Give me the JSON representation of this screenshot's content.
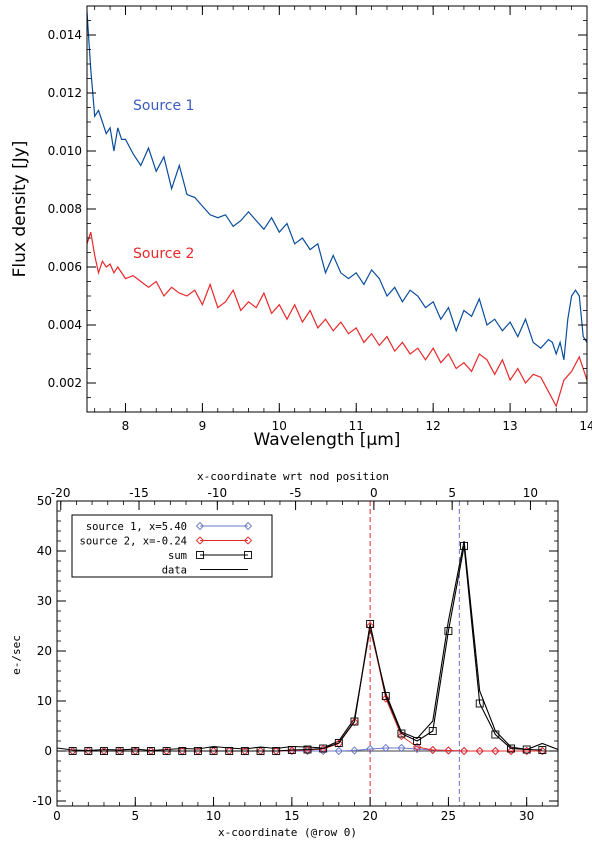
{
  "chart_data": [
    {
      "type": "line",
      "xlabel": "Wavelength [μm]",
      "ylabel": "Flux density [Jy]",
      "xlim": [
        7.5,
        14.0
      ],
      "ylim": [
        0.001,
        0.015
      ],
      "xticks": [
        8,
        9,
        10,
        11,
        12,
        13,
        14
      ],
      "xtick_labels": [
        "8",
        "9",
        "10",
        "11",
        "12",
        "13",
        "14"
      ],
      "yticks": [
        0.002,
        0.004,
        0.006,
        0.008,
        0.01,
        0.012,
        0.014
      ],
      "ytick_labels": [
        "0.002",
        "0.004",
        "0.006",
        "0.008",
        "0.010",
        "0.012",
        "0.014"
      ],
      "annotations": [
        {
          "text": "Source 1",
          "color": "#3b5bbf"
        },
        {
          "text": "Source 2",
          "color": "#e8282a"
        }
      ],
      "series": [
        {
          "color": "#0a4d9c",
          "x": [
            7.5,
            7.55,
            7.6,
            7.65,
            7.7,
            7.75,
            7.8,
            7.85,
            7.9,
            7.95,
            8.0,
            8.1,
            8.2,
            8.3,
            8.4,
            8.5,
            8.6,
            8.7,
            8.8,
            8.9,
            9.0,
            9.1,
            9.2,
            9.3,
            9.4,
            9.5,
            9.6,
            9.7,
            9.8,
            9.9,
            10.0,
            10.1,
            10.2,
            10.3,
            10.4,
            10.5,
            10.6,
            10.7,
            10.8,
            10.9,
            11.0,
            11.1,
            11.2,
            11.3,
            11.4,
            11.5,
            11.6,
            11.7,
            11.8,
            11.9,
            12.0,
            12.1,
            12.2,
            12.3,
            12.4,
            12.5,
            12.6,
            12.7,
            12.8,
            12.9,
            13.0,
            13.1,
            13.2,
            13.3,
            13.4,
            13.5,
            13.55,
            13.6,
            13.65,
            13.7,
            13.75,
            13.8,
            13.85,
            13.9,
            13.95,
            14.0
          ],
          "y": [
            0.0148,
            0.0128,
            0.0112,
            0.0114,
            0.011,
            0.0106,
            0.0108,
            0.01,
            0.0108,
            0.0104,
            0.0104,
            0.0099,
            0.0095,
            0.0101,
            0.0093,
            0.0098,
            0.0087,
            0.0095,
            0.0085,
            0.0084,
            0.0081,
            0.0078,
            0.0077,
            0.0078,
            0.0074,
            0.0076,
            0.0079,
            0.0076,
            0.0073,
            0.0077,
            0.0072,
            0.0075,
            0.0068,
            0.007,
            0.0066,
            0.0068,
            0.0058,
            0.0064,
            0.0058,
            0.0056,
            0.0058,
            0.0054,
            0.0059,
            0.0056,
            0.005,
            0.0053,
            0.0048,
            0.0052,
            0.005,
            0.0046,
            0.0048,
            0.0042,
            0.0046,
            0.0038,
            0.0045,
            0.0043,
            0.0049,
            0.004,
            0.0042,
            0.0038,
            0.0041,
            0.0036,
            0.0042,
            0.0034,
            0.0032,
            0.0035,
            0.0034,
            0.003,
            0.0034,
            0.0028,
            0.0042,
            0.005,
            0.0052,
            0.005,
            0.0036,
            0.0034
          ]
        },
        {
          "color": "#e8282a",
          "x": [
            7.5,
            7.55,
            7.6,
            7.65,
            7.7,
            7.75,
            7.8,
            7.85,
            7.9,
            8.0,
            8.1,
            8.2,
            8.3,
            8.4,
            8.5,
            8.6,
            8.7,
            8.8,
            8.9,
            9.0,
            9.1,
            9.2,
            9.3,
            9.4,
            9.5,
            9.6,
            9.7,
            9.8,
            9.9,
            10.0,
            10.1,
            10.2,
            10.3,
            10.4,
            10.5,
            10.6,
            10.7,
            10.8,
            10.9,
            11.0,
            11.1,
            11.2,
            11.3,
            11.4,
            11.5,
            11.6,
            11.7,
            11.8,
            11.9,
            12.0,
            12.1,
            12.2,
            12.3,
            12.4,
            12.5,
            12.6,
            12.7,
            12.8,
            12.9,
            13.0,
            13.1,
            13.2,
            13.3,
            13.4,
            13.5,
            13.6,
            13.7,
            13.8,
            13.9,
            14.0
          ],
          "y": [
            0.0068,
            0.0072,
            0.0064,
            0.0058,
            0.0062,
            0.006,
            0.0061,
            0.0058,
            0.006,
            0.0056,
            0.0057,
            0.0055,
            0.0053,
            0.0055,
            0.005,
            0.0053,
            0.0051,
            0.005,
            0.0052,
            0.0047,
            0.0054,
            0.0046,
            0.0048,
            0.0052,
            0.0045,
            0.0048,
            0.0046,
            0.0051,
            0.0044,
            0.0047,
            0.0042,
            0.0047,
            0.0041,
            0.0045,
            0.0039,
            0.0042,
            0.0038,
            0.0041,
            0.0037,
            0.0039,
            0.0034,
            0.0037,
            0.0033,
            0.0036,
            0.0031,
            0.0034,
            0.003,
            0.0032,
            0.0028,
            0.0032,
            0.0027,
            0.003,
            0.0025,
            0.0027,
            0.0024,
            0.003,
            0.0028,
            0.0023,
            0.0028,
            0.0021,
            0.0025,
            0.002,
            0.0023,
            0.0022,
            0.0017,
            0.0012,
            0.0021,
            0.0024,
            0.0029,
            0.0021
          ]
        }
      ]
    },
    {
      "type": "line",
      "xlabel": "x-coordinate (@row 0)",
      "ylabel": "e-/sec",
      "x2label": "x-coordinate wrt nod position",
      "xlim": [
        0,
        32
      ],
      "ylim": [
        -11,
        50
      ],
      "x2lim": [
        -20.24,
        11.76
      ],
      "xticks": [
        0,
        5,
        10,
        15,
        20,
        25,
        30
      ],
      "xtick_labels": [
        "0",
        "5",
        "10",
        "15",
        "20",
        "25",
        "30"
      ],
      "yticks": [
        -10,
        0,
        10,
        20,
        30,
        40,
        50
      ],
      "ytick_labels": [
        "-10",
        "0",
        "10",
        "20",
        "30",
        "40",
        "50"
      ],
      "x2ticks": [
        -20,
        -15,
        -10,
        -5,
        0,
        5,
        10
      ],
      "x2tick_labels": [
        "-20",
        "-15",
        "-10",
        "-5",
        "0",
        "5",
        "10"
      ],
      "vlines": [
        {
          "x": 20.0,
          "color": "#e8282a"
        },
        {
          "x": 25.7,
          "color": "#6b78c8"
        }
      ],
      "legend": {
        "placement": "top-left"
      },
      "series": [
        {
          "name": "source 1, x=5.40",
          "color": "#6b78c8",
          "marker": "diamond",
          "x": [
            1,
            2,
            3,
            4,
            5,
            6,
            7,
            8,
            9,
            10,
            11,
            12,
            13,
            14,
            15,
            16,
            17,
            18,
            19,
            20,
            21,
            22,
            23,
            24,
            25,
            26,
            27,
            28,
            29,
            30,
            31
          ],
          "y": [
            0,
            0,
            0,
            0,
            0,
            0,
            0,
            0,
            0,
            0,
            0,
            0,
            0,
            0,
            0,
            0,
            0,
            0,
            0.1,
            0.4,
            0.6,
            0.6,
            0.4,
            0.2,
            0.1,
            0,
            0,
            0,
            0,
            0,
            0
          ]
        },
        {
          "name": "source 2, x=-0.24",
          "color": "#e8282a",
          "marker": "diamond",
          "x": [
            1,
            2,
            3,
            4,
            5,
            6,
            7,
            8,
            9,
            10,
            11,
            12,
            13,
            14,
            15,
            16,
            17,
            18,
            19,
            20,
            21,
            22,
            23,
            24,
            25,
            26,
            27,
            28,
            29,
            30,
            31
          ],
          "y": [
            0,
            0,
            0,
            0,
            0,
            0,
            0,
            0,
            0,
            0,
            0,
            0,
            0,
            0,
            0.1,
            0.2,
            0.4,
            1.5,
            5.8,
            25.0,
            10.5,
            3.0,
            0.8,
            0.2,
            0.1,
            0,
            0,
            0,
            0,
            0,
            0
          ]
        },
        {
          "name": "sum",
          "color": "#000000",
          "marker": "square",
          "x": [
            1,
            2,
            3,
            4,
            5,
            6,
            7,
            8,
            9,
            10,
            11,
            12,
            13,
            14,
            15,
            16,
            17,
            18,
            19,
            20,
            21,
            22,
            23,
            24,
            25,
            26,
            27,
            28,
            29,
            30,
            31
          ],
          "y": [
            0,
            0,
            0,
            0,
            0,
            0,
            0,
            0,
            0,
            0,
            0,
            0,
            0,
            0,
            0.2,
            0.3,
            0.5,
            1.6,
            5.9,
            25.4,
            11.0,
            3.5,
            2.0,
            4.0,
            24.0,
            41.0,
            9.5,
            3.3,
            0.5,
            0.3,
            0.2
          ]
        },
        {
          "name": "data",
          "color": "#000000",
          "marker": "none",
          "x": [
            0,
            1,
            2,
            3,
            4,
            5,
            6,
            7,
            8,
            9,
            10,
            11,
            12,
            13,
            14,
            15,
            16,
            17,
            18,
            19,
            20,
            21,
            22,
            23,
            24,
            25,
            26,
            27,
            28,
            29,
            30,
            31,
            32
          ],
          "y": [
            0.6,
            0.2,
            0.1,
            0.3,
            0.2,
            0.4,
            0.1,
            0.3,
            0.5,
            0.4,
            0.9,
            0.6,
            0.4,
            0.8,
            0.5,
            0.9,
            0.8,
            0.6,
            2.0,
            6.5,
            24.5,
            11.5,
            3.8,
            2.5,
            6.0,
            26.0,
            42.0,
            12.0,
            4.0,
            0.8,
            0.3,
            1.5,
            0.3
          ]
        }
      ]
    }
  ]
}
